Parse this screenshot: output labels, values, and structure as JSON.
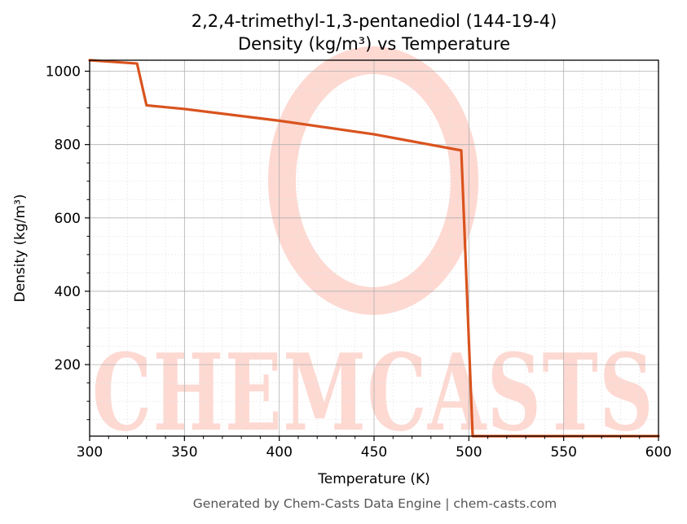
{
  "chart_data": {
    "type": "line",
    "title_line1": "2,2,4-trimethyl-1,3-pentanediol (144-19-4)",
    "title_line2": "Density (kg/m³) vs Temperature",
    "xlabel": "Temperature (K)",
    "ylabel": "Density (kg/m³)",
    "xlim": [
      300,
      600
    ],
    "ylim": [
      5,
      1030
    ],
    "x_ticks": [
      300,
      350,
      400,
      450,
      500,
      550,
      600
    ],
    "y_ticks": [
      200,
      400,
      600,
      800,
      1000
    ],
    "grid": true,
    "series": [
      {
        "color": "#d9531e",
        "x": [
          300,
          325,
          330,
          350,
          400,
          450,
          496,
          502,
          550,
          600
        ],
        "y": [
          1030,
          1021,
          907,
          897,
          865,
          828,
          784,
          5,
          5,
          5
        ]
      }
    ]
  },
  "watermark": {
    "text": "CHEMCASTS",
    "color": "#fdd9d2"
  },
  "footer": "Generated by Chem-Casts Data Engine | chem-casts.com"
}
